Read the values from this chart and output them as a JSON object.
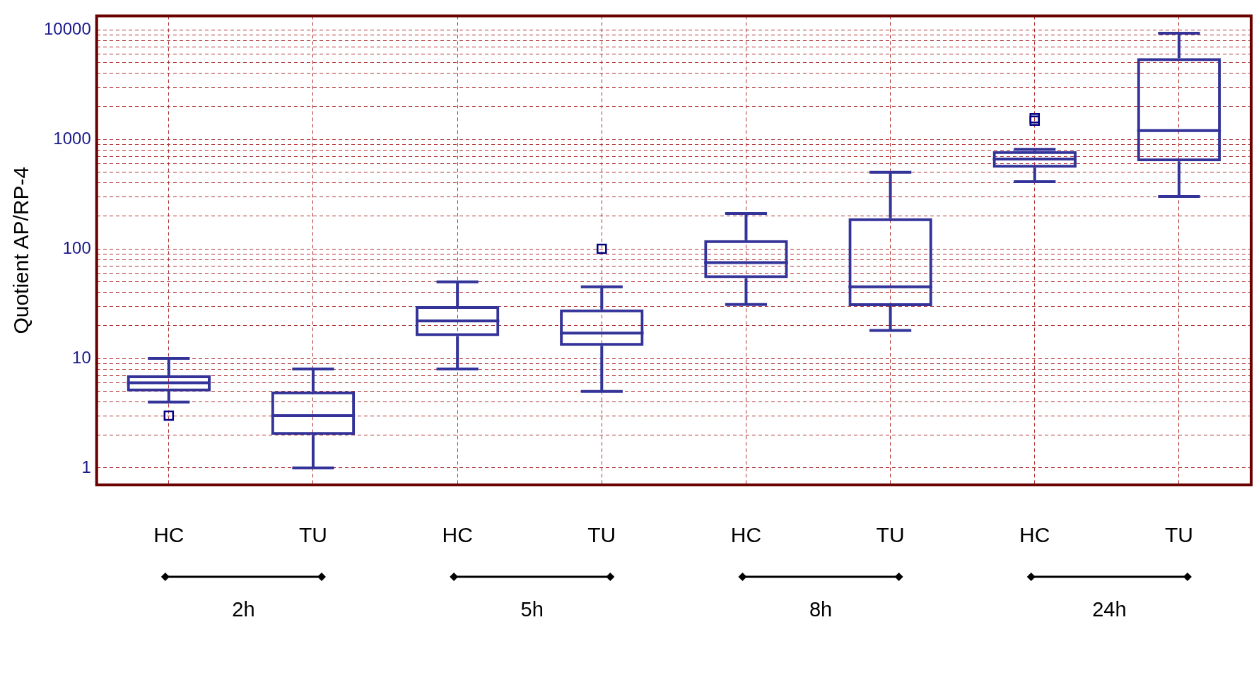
{
  "chart_data": {
    "type": "box",
    "ylabel": "Quotient AP/RP-4",
    "categories": [
      "HC",
      "TU",
      "HC",
      "TU",
      "HC",
      "TU",
      "HC",
      "TU"
    ],
    "annotations": [
      "2h",
      "5h",
      "8h",
      "24h"
    ],
    "color": "#333399",
    "marker": "square",
    "log": true,
    "grid": true,
    "boxes": [
      {
        "low": 4,
        "q1": 5,
        "median": 6,
        "q3": 7,
        "high": 10,
        "outliers": [
          3
        ]
      },
      {
        "low": 1,
        "q1": 2,
        "median": 3,
        "q3": 5,
        "high": 8
      },
      {
        "low": 8,
        "q1": 16,
        "median": 22,
        "q3": 30,
        "high": 50
      },
      {
        "low": 5,
        "q1": 13,
        "median": 17,
        "q3": 28,
        "high": 45,
        "outliers": [
          100
        ]
      },
      {
        "low": 31,
        "q1": 54,
        "median": 75,
        "q3": 120,
        "high": 210
      },
      {
        "low": 18,
        "q1": 30,
        "median": 45,
        "q3": 190,
        "high": 500
      },
      {
        "low": 410,
        "q1": 550,
        "median": 660,
        "q3": 780,
        "high": 810,
        "outliers": [
          1560,
          1480
        ]
      },
      {
        "low": 300,
        "q1": 630,
        "median": 1200,
        "q3": 5500,
        "high": 9300
      }
    ],
    "ylim": [
      0.73,
      13400
    ],
    "yticks": [
      1,
      {
        "value": 2,
        "label": null
      },
      {
        "value": 3,
        "label": null
      },
      {
        "value": 4,
        "label": null
      },
      {
        "value": 5,
        "label": null
      },
      {
        "value": 6,
        "label": null
      },
      {
        "value": 7,
        "label": null
      },
      {
        "value": 8,
        "label": null
      },
      {
        "value": 9,
        "label": null
      },
      10,
      {
        "value": 20,
        "label": null
      },
      {
        "value": 30,
        "label": null
      },
      {
        "value": 40,
        "label": null
      },
      {
        "value": 50,
        "label": null
      },
      {
        "value": 60,
        "label": null
      },
      {
        "value": 70,
        "label": null
      },
      {
        "value": 80,
        "label": null
      },
      {
        "value": 90,
        "label": null
      },
      100,
      {
        "value": 200,
        "label": null
      },
      {
        "value": 300,
        "label": null
      },
      {
        "value": 400,
        "label": null
      },
      {
        "value": 500,
        "label": null
      },
      {
        "value": 600,
        "label": null
      },
      {
        "value": 700,
        "label": null
      },
      {
        "value": 800,
        "label": null
      },
      {
        "value": 900,
        "label": null
      },
      1000,
      {
        "value": 2000,
        "label": null
      },
      {
        "value": 3000,
        "label": null
      },
      {
        "value": 4000,
        "label": null
      },
      {
        "value": 5000,
        "label": null
      },
      {
        "value": 6000,
        "label": null
      },
      {
        "value": 7000,
        "label": null
      },
      {
        "value": 8000,
        "label": null
      },
      {
        "value": 9000,
        "label": null
      },
      10000
    ]
  }
}
